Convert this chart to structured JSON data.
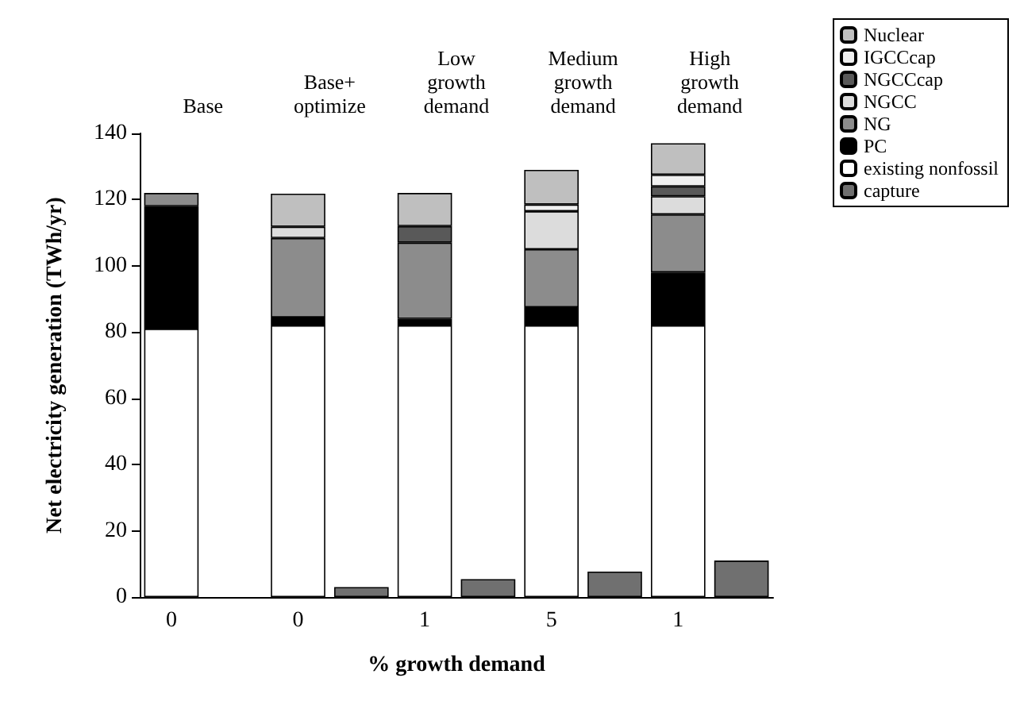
{
  "chart_data": {
    "type": "bar",
    "stacked": true,
    "xlabel": "% growth demand",
    "ylabel": "Net electricity generation (TWh/yr)",
    "categories": [
      "0",
      null,
      "0",
      null,
      "1",
      null,
      "5",
      null,
      "1",
      null
    ],
    "annotations": [
      "Base",
      "Base+\noptimize",
      "Low\ngrowth\ndemand",
      "Medium\ngrowth\ndemand",
      "High\ngrowth\ndemand"
    ],
    "series": [
      {
        "name": "existing nonfossil",
        "color": "#ffffff",
        "values": [
          81,
          null,
          82,
          null,
          82,
          null,
          82,
          null,
          82,
          null
        ]
      },
      {
        "name": "PC",
        "color": "#000000",
        "values": [
          37,
          null,
          2.4,
          null,
          2,
          null,
          5.5,
          null,
          16,
          null
        ]
      },
      {
        "name": "NG",
        "color": "#8c8c8c",
        "values": [
          4,
          null,
          24,
          null,
          23,
          null,
          17.5,
          null,
          17.5,
          null
        ]
      },
      {
        "name": "NGCC",
        "color": "#dcdcdc",
        "values": [
          null,
          null,
          3.4,
          null,
          null,
          null,
          11.5,
          null,
          5.5,
          null
        ]
      },
      {
        "name": "NGCCcap",
        "color": "#595959",
        "values": [
          null,
          null,
          null,
          null,
          5,
          null,
          null,
          null,
          3,
          null
        ]
      },
      {
        "name": "IGCCcap",
        "color": "#f0f0f0",
        "values": [
          null,
          null,
          null,
          null,
          null,
          null,
          2,
          null,
          3.5,
          null
        ]
      },
      {
        "name": "Nuclear",
        "color": "#bfbfbf",
        "values": [
          null,
          null,
          10,
          null,
          10,
          null,
          10.5,
          null,
          9.5,
          null
        ]
      },
      {
        "name": "capture",
        "color": "#707070",
        "values": [
          null,
          null,
          null,
          3,
          null,
          5.4,
          null,
          7.7,
          null,
          11
        ]
      }
    ],
    "ylim": [
      0,
      140
    ],
    "yticks": [
      0,
      20,
      40,
      60,
      80,
      100,
      120,
      140
    ],
    "grid": false,
    "legend": "top right"
  }
}
